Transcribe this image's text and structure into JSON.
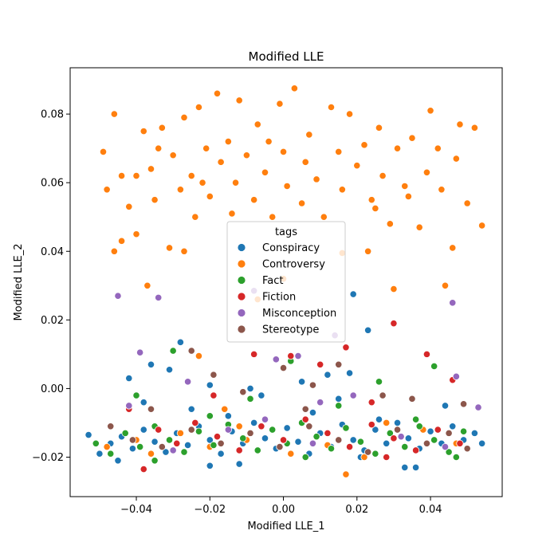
{
  "chart_data": {
    "type": "scatter",
    "title": "Modified LLE",
    "xlabel": "Modified LLE_1",
    "ylabel": "Modified LLE_2",
    "xlim": [
      -0.058,
      0.0595
    ],
    "ylim": [
      -0.0315,
      0.0935
    ],
    "xticks": [
      -0.04,
      -0.02,
      0.0,
      0.02,
      0.04
    ],
    "xtick_labels": [
      "−0.04",
      "−0.02",
      "0.00",
      "0.02",
      "0.04"
    ],
    "yticks": [
      -0.02,
      0.0,
      0.02,
      0.04,
      0.06,
      0.08
    ],
    "ytick_labels": [
      "−0.02",
      "0.00",
      "0.02",
      "0.04",
      "0.06",
      "0.08"
    ],
    "grid": false,
    "legend": {
      "title": "tags",
      "placement": "center"
    },
    "series": [
      {
        "name": "Conspiracy",
        "color": "#1f77b4",
        "points": [
          [
            -0.053,
            -0.0135
          ],
          [
            -0.05,
            -0.019
          ],
          [
            -0.047,
            -0.016
          ],
          [
            -0.044,
            -0.014
          ],
          [
            -0.041,
            -0.0175
          ],
          [
            -0.038,
            -0.012
          ],
          [
            -0.035,
            -0.0155
          ],
          [
            -0.032,
            -0.0185
          ],
          [
            -0.029,
            -0.013
          ],
          [
            -0.026,
            -0.0165
          ],
          [
            -0.023,
            -0.011
          ],
          [
            -0.02,
            -0.015
          ],
          [
            -0.017,
            -0.019
          ],
          [
            -0.014,
            -0.0125
          ],
          [
            -0.011,
            -0.016
          ],
          [
            -0.008,
            -0.01
          ],
          [
            -0.005,
            -0.0145
          ],
          [
            -0.002,
            -0.0175
          ],
          [
            0.001,
            -0.0115
          ],
          [
            0.004,
            -0.0155
          ],
          [
            0.007,
            -0.019
          ],
          [
            0.01,
            -0.013
          ],
          [
            0.013,
            -0.017
          ],
          [
            0.016,
            -0.0105
          ],
          [
            0.019,
            -0.015
          ],
          [
            0.022,
            -0.018
          ],
          [
            0.025,
            -0.012
          ],
          [
            0.028,
            -0.016
          ],
          [
            0.031,
            -0.01
          ],
          [
            0.034,
            -0.0145
          ],
          [
            0.037,
            -0.0175
          ],
          [
            0.04,
            -0.0125
          ],
          [
            0.043,
            -0.016
          ],
          [
            0.046,
            -0.011
          ],
          [
            0.049,
            -0.015
          ],
          [
            0.052,
            -0.013
          ],
          [
            0.054,
            -0.016
          ],
          [
            -0.042,
            0.003
          ],
          [
            -0.036,
            0.007
          ],
          [
            -0.028,
            0.0135
          ],
          [
            -0.031,
            0.0055
          ],
          [
            -0.02,
            0.001
          ],
          [
            0.018,
            0.0045
          ],
          [
            0.012,
            0.004
          ],
          [
            0.019,
            0.0275
          ],
          [
            0.023,
            0.017
          ],
          [
            -0.009,
            0.0
          ],
          [
            0.005,
            0.002
          ],
          [
            -0.015,
            -0.008
          ],
          [
            0.026,
            -0.009
          ],
          [
            -0.038,
            -0.004
          ],
          [
            0.044,
            -0.005
          ],
          [
            0.008,
            -0.007
          ],
          [
            -0.025,
            -0.006
          ],
          [
            0.015,
            -0.003
          ],
          [
            -0.006,
            -0.002
          ],
          [
            0.033,
            -0.023
          ],
          [
            -0.012,
            -0.022
          ],
          [
            0.021,
            -0.02
          ],
          [
            -0.045,
            -0.021
          ],
          [
            0.036,
            -0.023
          ],
          [
            -0.02,
            -0.0225
          ]
        ]
      },
      {
        "name": "Controversy",
        "color": "#ff7f0e",
        "points": [
          [
            -0.049,
            0.069
          ],
          [
            -0.048,
            0.058
          ],
          [
            -0.046,
            0.08
          ],
          [
            -0.044,
            0.062
          ],
          [
            -0.042,
            0.053
          ],
          [
            -0.04,
            0.045
          ],
          [
            -0.038,
            0.075
          ],
          [
            -0.037,
            0.03
          ],
          [
            -0.036,
            0.064
          ],
          [
            -0.035,
            0.055
          ],
          [
            -0.033,
            0.076
          ],
          [
            -0.031,
            0.041
          ],
          [
            -0.03,
            0.068
          ],
          [
            -0.028,
            0.058
          ],
          [
            -0.027,
            0.079
          ],
          [
            -0.025,
            0.062
          ],
          [
            -0.023,
            0.082
          ],
          [
            -0.021,
            0.07
          ],
          [
            -0.02,
            0.056
          ],
          [
            -0.018,
            0.086
          ],
          [
            -0.017,
            0.066
          ],
          [
            -0.015,
            0.072
          ],
          [
            -0.014,
            0.051
          ],
          [
            -0.013,
            0.06
          ],
          [
            -0.012,
            0.084
          ],
          [
            -0.01,
            0.068
          ],
          [
            -0.008,
            0.055
          ],
          [
            -0.007,
            0.077
          ],
          [
            -0.005,
            0.063
          ],
          [
            -0.004,
            0.072
          ],
          [
            -0.003,
            0.05
          ],
          [
            -0.001,
            0.083
          ],
          [
            0.0,
            0.069
          ],
          [
            0.001,
            0.059
          ],
          [
            0.003,
            0.0875
          ],
          [
            0.005,
            0.054
          ],
          [
            0.007,
            0.074
          ],
          [
            0.009,
            0.061
          ],
          [
            0.011,
            0.05
          ],
          [
            0.013,
            0.082
          ],
          [
            0.015,
            0.069
          ],
          [
            0.016,
            0.058
          ],
          [
            0.018,
            0.08
          ],
          [
            0.02,
            0.065
          ],
          [
            0.022,
            0.071
          ],
          [
            0.023,
            0.04
          ],
          [
            0.024,
            0.055
          ],
          [
            0.026,
            0.076
          ],
          [
            0.027,
            0.062
          ],
          [
            0.029,
            0.048
          ],
          [
            0.03,
            0.029
          ],
          [
            0.031,
            0.07
          ],
          [
            0.033,
            0.059
          ],
          [
            0.035,
            0.073
          ],
          [
            0.037,
            0.047
          ],
          [
            0.039,
            0.063
          ],
          [
            0.04,
            0.081
          ],
          [
            0.042,
            0.07
          ],
          [
            0.043,
            0.058
          ],
          [
            0.044,
            0.03
          ],
          [
            0.046,
            0.041
          ],
          [
            0.047,
            0.067
          ],
          [
            0.048,
            0.077
          ],
          [
            0.05,
            0.054
          ],
          [
            0.052,
            0.076
          ],
          [
            0.054,
            0.0475
          ],
          [
            -0.027,
            0.04
          ],
          [
            -0.044,
            0.043
          ],
          [
            -0.046,
            0.04
          ],
          [
            -0.024,
            0.05
          ],
          [
            0.0,
            0.032
          ],
          [
            0.016,
            0.0395
          ],
          [
            -0.007,
            0.026
          ],
          [
            -0.04,
            0.062
          ],
          [
            -0.034,
            0.07
          ],
          [
            -0.022,
            0.06
          ],
          [
            0.025,
            0.0525
          ],
          [
            0.034,
            0.056
          ],
          [
            0.006,
            0.066
          ],
          [
            -0.036,
            -0.019
          ],
          [
            0.017,
            -0.025
          ],
          [
            -0.012,
            -0.011
          ],
          [
            0.009,
            -0.014
          ],
          [
            0.038,
            -0.012
          ],
          [
            -0.04,
            -0.015
          ],
          [
            -0.02,
            -0.017
          ],
          [
            0.002,
            -0.019
          ],
          [
            0.028,
            -0.01
          ],
          [
            -0.048,
            -0.017
          ],
          [
            0.047,
            -0.016
          ],
          [
            -0.01,
            -0.015
          ],
          [
            0.022,
            -0.02
          ],
          [
            -0.028,
            -0.013
          ],
          [
            0.012,
            -0.0165
          ],
          [
            -0.023,
            0.0095
          ],
          [
            -0.016,
            -0.006
          ]
        ]
      },
      {
        "name": "Fact",
        "color": "#2ca02c",
        "points": [
          [
            -0.051,
            -0.016
          ],
          [
            -0.047,
            -0.019
          ],
          [
            -0.043,
            -0.013
          ],
          [
            -0.039,
            -0.017
          ],
          [
            -0.035,
            -0.011
          ],
          [
            -0.031,
            -0.015
          ],
          [
            -0.027,
            -0.0185
          ],
          [
            -0.023,
            -0.0125
          ],
          [
            -0.019,
            -0.0165
          ],
          [
            -0.015,
            -0.0105
          ],
          [
            -0.011,
            -0.0145
          ],
          [
            -0.007,
            -0.018
          ],
          [
            -0.003,
            -0.012
          ],
          [
            0.001,
            -0.016
          ],
          [
            0.005,
            -0.01
          ],
          [
            0.009,
            -0.014
          ],
          [
            0.013,
            -0.0175
          ],
          [
            0.017,
            -0.0115
          ],
          [
            0.021,
            -0.0155
          ],
          [
            0.025,
            -0.019
          ],
          [
            0.029,
            -0.013
          ],
          [
            0.033,
            -0.017
          ],
          [
            0.037,
            -0.011
          ],
          [
            0.041,
            -0.015
          ],
          [
            0.045,
            -0.0185
          ],
          [
            0.049,
            -0.0125
          ],
          [
            -0.03,
            0.011
          ],
          [
            0.026,
            0.002
          ],
          [
            0.002,
            0.008
          ],
          [
            -0.009,
            -0.003
          ],
          [
            0.041,
            0.0065
          ],
          [
            -0.04,
            -0.002
          ],
          [
            0.015,
            -0.005
          ],
          [
            -0.02,
            -0.008
          ],
          [
            0.036,
            -0.009
          ],
          [
            0.006,
            -0.02
          ],
          [
            -0.035,
            -0.021
          ],
          [
            0.047,
            -0.02
          ]
        ]
      },
      {
        "name": "Fiction",
        "color": "#d62728",
        "points": [
          [
            -0.038,
            -0.0235
          ],
          [
            -0.034,
            -0.012
          ],
          [
            -0.029,
            -0.016
          ],
          [
            -0.024,
            -0.01
          ],
          [
            -0.018,
            -0.014
          ],
          [
            -0.012,
            -0.018
          ],
          [
            -0.006,
            -0.011
          ],
          [
            0.0,
            -0.015
          ],
          [
            0.006,
            -0.009
          ],
          [
            0.012,
            -0.013
          ],
          [
            0.018,
            -0.017
          ],
          [
            0.024,
            -0.0105
          ],
          [
            0.03,
            -0.0145
          ],
          [
            0.036,
            -0.018
          ],
          [
            0.042,
            -0.012
          ],
          [
            0.048,
            -0.016
          ],
          [
            -0.008,
            0.01
          ],
          [
            0.002,
            0.0095
          ],
          [
            0.01,
            0.007
          ],
          [
            0.017,
            0.012
          ],
          [
            0.03,
            0.019
          ],
          [
            0.039,
            0.01
          ],
          [
            0.046,
            0.0025
          ],
          [
            -0.019,
            -0.002
          ],
          [
            0.024,
            -0.004
          ],
          [
            -0.042,
            -0.006
          ],
          [
            0.028,
            -0.02
          ]
        ]
      },
      {
        "name": "Misconception",
        "color": "#9467bd",
        "points": [
          [
            -0.045,
            0.027
          ],
          [
            -0.034,
            0.0265
          ],
          [
            -0.039,
            0.0105
          ],
          [
            -0.008,
            0.0285
          ],
          [
            0.014,
            0.0155
          ],
          [
            0.046,
            0.025
          ],
          [
            -0.002,
            0.0085
          ],
          [
            0.004,
            0.0095
          ],
          [
            0.047,
            0.0035
          ],
          [
            -0.026,
            0.002
          ],
          [
            0.019,
            -0.002
          ],
          [
            -0.042,
            -0.005
          ],
          [
            0.053,
            -0.0055
          ],
          [
            -0.015,
            -0.012
          ],
          [
            0.008,
            -0.016
          ],
          [
            0.032,
            -0.014
          ],
          [
            -0.03,
            -0.018
          ],
          [
            0.044,
            -0.017
          ],
          [
            -0.005,
            -0.009
          ],
          [
            0.01,
            -0.004
          ]
        ]
      },
      {
        "name": "Stereotype",
        "color": "#8c564b",
        "points": [
          [
            -0.025,
            0.011
          ],
          [
            -0.019,
            0.004
          ],
          [
            -0.011,
            -0.001
          ],
          [
            0.0,
            0.006
          ],
          [
            0.008,
            0.001
          ],
          [
            0.015,
            0.007
          ],
          [
            0.027,
            -0.002
          ],
          [
            0.035,
            -0.003
          ],
          [
            0.049,
            -0.0045
          ],
          [
            -0.047,
            -0.011
          ],
          [
            -0.041,
            -0.015
          ],
          [
            -0.033,
            -0.017
          ],
          [
            -0.025,
            -0.012
          ],
          [
            -0.017,
            -0.016
          ],
          [
            -0.009,
            -0.013
          ],
          [
            -0.001,
            -0.017
          ],
          [
            0.007,
            -0.011
          ],
          [
            0.015,
            -0.015
          ],
          [
            0.023,
            -0.0185
          ],
          [
            0.031,
            -0.012
          ],
          [
            0.039,
            -0.016
          ],
          [
            0.045,
            -0.013
          ],
          [
            0.05,
            -0.0175
          ],
          [
            -0.036,
            -0.006
          ],
          [
            0.006,
            -0.006
          ]
        ]
      }
    ]
  }
}
